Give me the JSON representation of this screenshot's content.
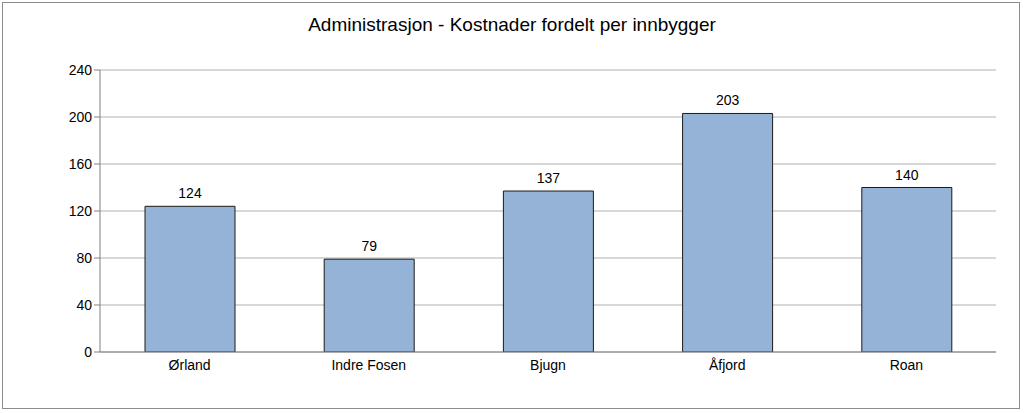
{
  "chart_data": {
    "type": "bar",
    "title": "Administrasjon - Kostnader fordelt per innbygger",
    "categories": [
      "Ørland",
      "Indre Fosen",
      "Bjugn",
      "Åfjord",
      "Roan"
    ],
    "values": [
      124,
      79,
      137,
      203,
      140
    ],
    "color": "#95b3d7",
    "ylim": [
      0,
      240
    ],
    "yticks": [
      0,
      40,
      80,
      120,
      160,
      200,
      240
    ],
    "grid": true,
    "data_labels": true
  }
}
